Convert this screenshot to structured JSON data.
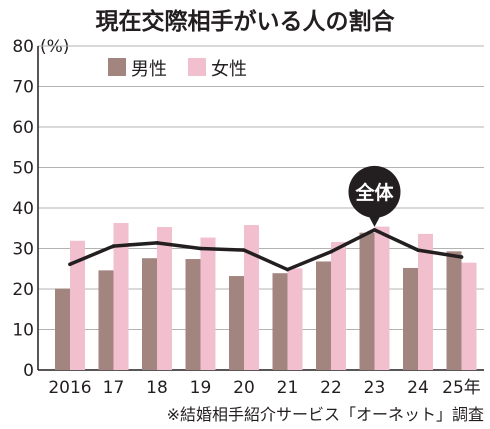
{
  "chart_data": {
    "type": "bar",
    "title": "現在交際相手がいる人の割合",
    "ylabel": "(%)",
    "xlabel": "",
    "ylim": [
      0,
      80
    ],
    "yticks": [
      0,
      10,
      20,
      30,
      40,
      50,
      60,
      70,
      80
    ],
    "categories": [
      "2016",
      "17",
      "18",
      "19",
      "20",
      "21",
      "22",
      "23",
      "24",
      "25年"
    ],
    "grid": true,
    "legend_placement": "top-left",
    "series": [
      {
        "name": "男性",
        "type": "bar",
        "color": "#a38580",
        "values": [
          20.1,
          24.6,
          27.6,
          27.4,
          23.2,
          23.9,
          26.8,
          33.9,
          25.2,
          29.3
        ]
      },
      {
        "name": "女性",
        "type": "bar",
        "color": "#f2bfcf",
        "values": [
          31.9,
          36.3,
          35.3,
          32.7,
          35.8,
          25.1,
          31.6,
          35.4,
          33.6,
          26.5
        ]
      },
      {
        "name": "全体",
        "type": "line",
        "color": "#231f20",
        "values": [
          26.1,
          30.6,
          31.4,
          30.0,
          29.6,
          24.8,
          29.2,
          34.6,
          29.6,
          27.9
        ]
      }
    ],
    "source": "※結婚相手紹介サービス「オーネット」調査"
  }
}
